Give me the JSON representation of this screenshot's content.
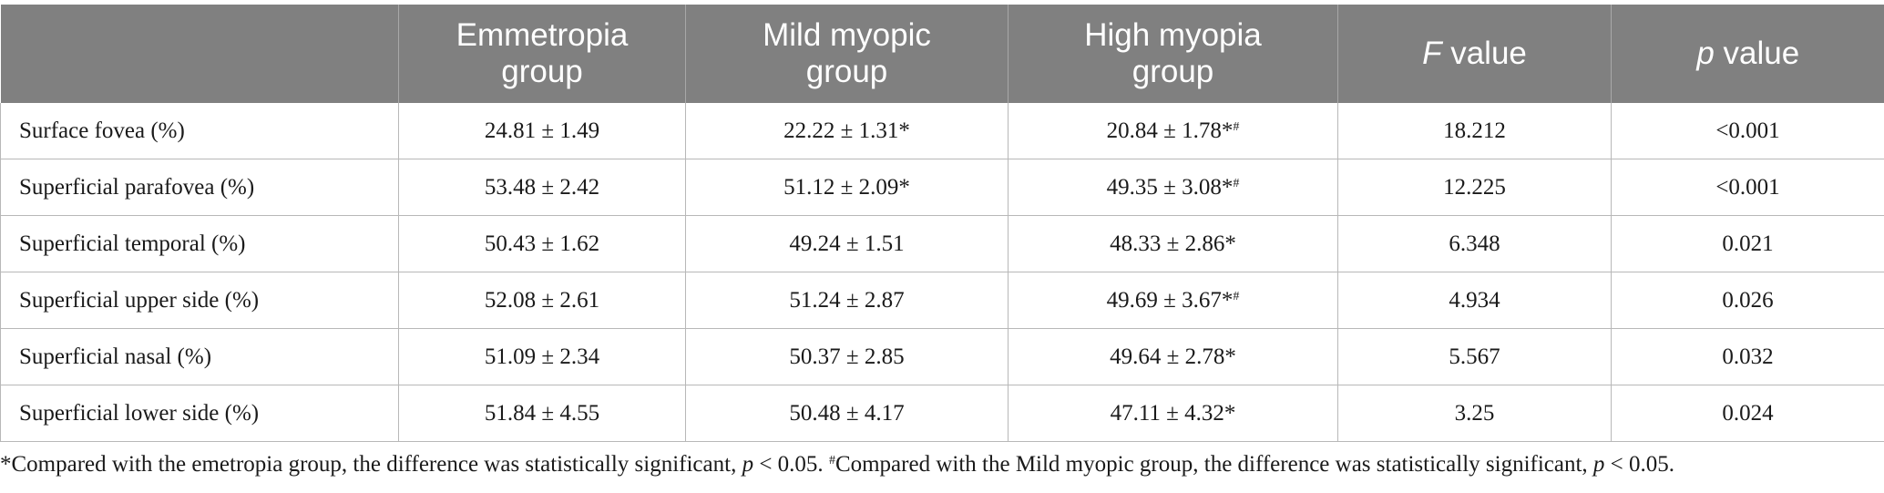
{
  "table": {
    "headers": [
      {
        "lines": [
          ""
        ]
      },
      {
        "lines": [
          "Emmetropia",
          "group"
        ]
      },
      {
        "lines": [
          "Mild myopic",
          "group"
        ]
      },
      {
        "lines": [
          "High myopia",
          "group"
        ]
      },
      {
        "italic": "F",
        "rest": " value"
      },
      {
        "italic": "p",
        "rest": " value"
      }
    ],
    "rows": [
      {
        "label": "Surface fovea (%)",
        "emmetropia": "24.81 ± 1.49",
        "mild": "22.22 ± 1.31*",
        "high": "20.84 ± 1.78*",
        "high_sup": "#",
        "f": "18.212",
        "p": "<0.001"
      },
      {
        "label": "Superficial parafovea (%)",
        "emmetropia": "53.48 ± 2.42",
        "mild": "51.12 ± 2.09*",
        "high": "49.35 ± 3.08*",
        "high_sup": "#",
        "f": "12.225",
        "p": "<0.001"
      },
      {
        "label": "Superficial temporal (%)",
        "emmetropia": "50.43 ± 1.62",
        "mild": "49.24 ± 1.51",
        "high": "48.33 ± 2.86*",
        "high_sup": "",
        "f": "6.348",
        "p": "0.021"
      },
      {
        "label": "Superficial upper side (%)",
        "emmetropia": "52.08 ± 2.61",
        "mild": "51.24 ± 2.87",
        "high": "49.69 ± 3.67*",
        "high_sup": "#",
        "f": "4.934",
        "p": "0.026"
      },
      {
        "label": "Superficial nasal (%)",
        "emmetropia": "51.09 ± 2.34",
        "mild": "50.37 ± 2.85",
        "high": "49.64 ± 2.78*",
        "high_sup": "",
        "f": "5.567",
        "p": "0.032"
      },
      {
        "label": "Superficial lower side (%)",
        "emmetropia": "51.84 ± 4.55",
        "mild": "50.48 ± 4.17",
        "high": "47.11 ± 4.32*",
        "high_sup": "",
        "f": "3.25",
        "p": "0.024"
      }
    ]
  },
  "footnote": {
    "part1": "*Compared with the emetropia group, the difference was statistically significant, ",
    "p1": "p",
    "part2": " < 0.05. ",
    "sup": "#",
    "part3": "Compared with the Mild myopic group, the difference was statistically significant, ",
    "p2": "p",
    "part4": " < 0.05."
  }
}
